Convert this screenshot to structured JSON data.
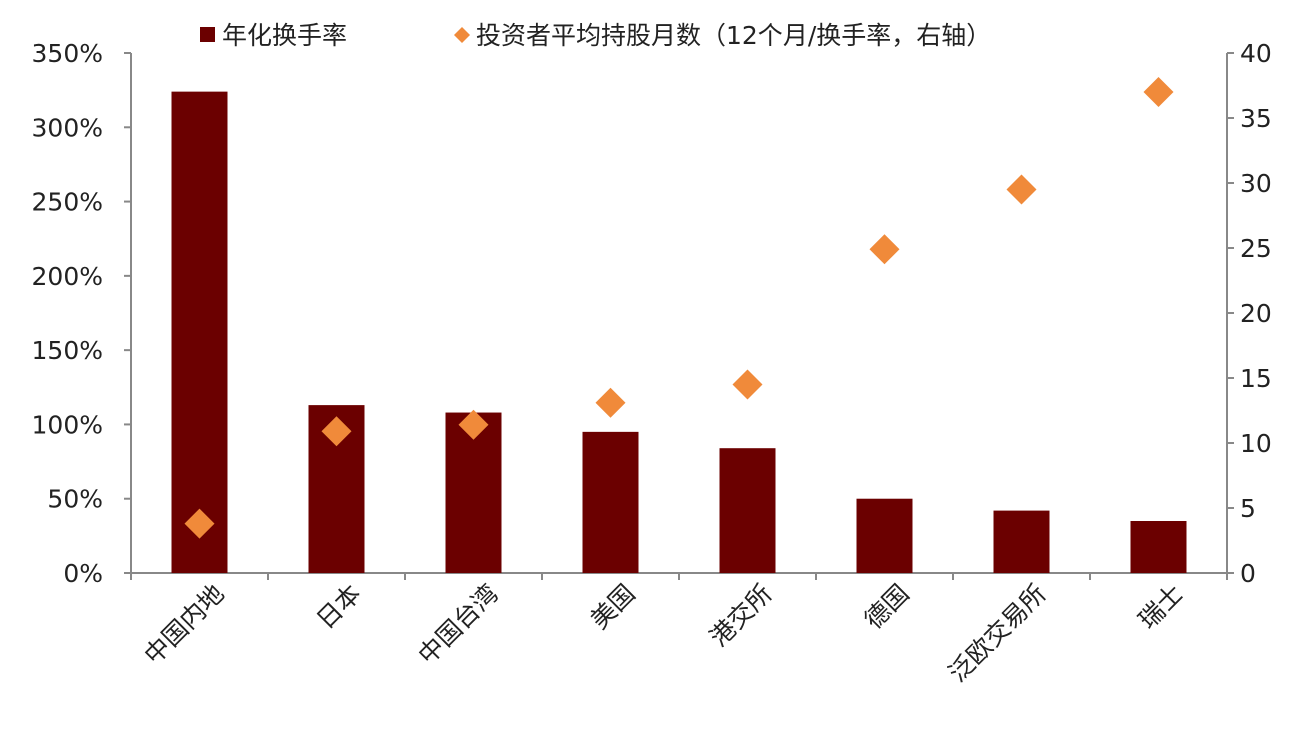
{
  "chart_data": {
    "type": "bar",
    "title": "",
    "categories": [
      "中国内地",
      "日本",
      "中国台湾",
      "美国",
      "港交所",
      "德国",
      "泛欧交易所",
      "瑞士"
    ],
    "series": [
      {
        "name": "年化换手率",
        "type": "bar",
        "axis": "left",
        "color": "#6B0000",
        "values": [
          324,
          113,
          108,
          95,
          84,
          50,
          42,
          35
        ]
      },
      {
        "name": "投资者平均持股月数（12个月/换手率，右轴）",
        "type": "scatter",
        "marker": "diamond",
        "axis": "right",
        "color": "#F08A3A",
        "values": [
          3.8,
          10.9,
          11.4,
          13.1,
          14.5,
          24.9,
          29.5,
          37.0
        ]
      }
    ],
    "left_axis": {
      "min": 0,
      "max": 350,
      "step": 50,
      "ticks": [
        "0%",
        "50%",
        "100%",
        "150%",
        "200%",
        "250%",
        "300%",
        "350%"
      ]
    },
    "right_axis": {
      "min": 0,
      "max": 40,
      "step": 5,
      "ticks": [
        "0",
        "5",
        "10",
        "15",
        "20",
        "25",
        "30",
        "35",
        "40"
      ]
    },
    "xlabel": "",
    "ylabel": "",
    "legend": "top",
    "grid": false
  }
}
